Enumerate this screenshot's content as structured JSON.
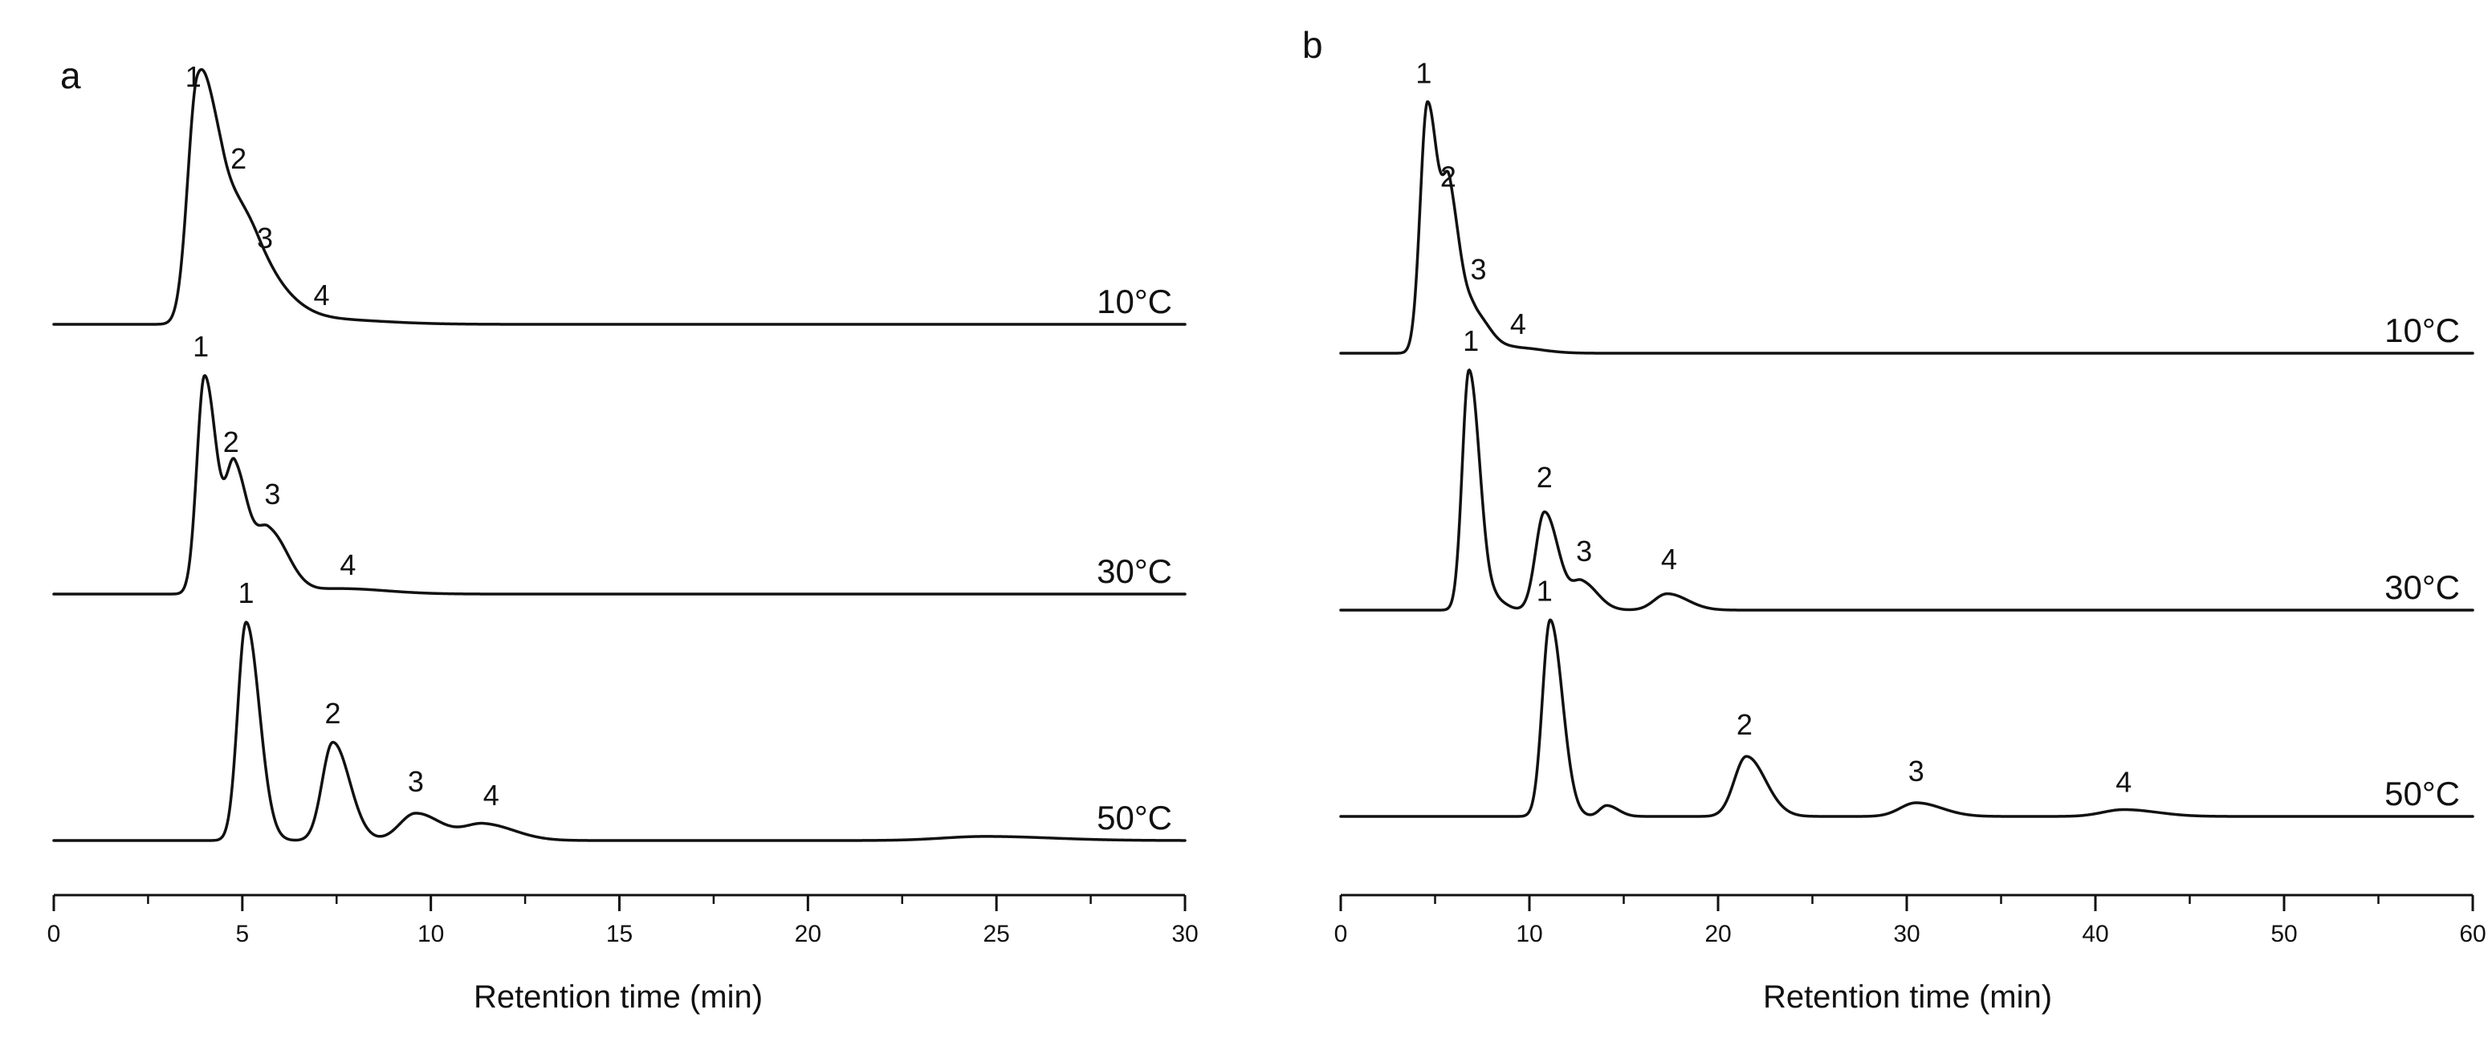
{
  "chart_data": [
    {
      "type": "line",
      "panel": "a",
      "xlabel": "Retention  time (min)",
      "ylabel": "",
      "xlim": [
        0,
        30
      ],
      "xticks": [
        0,
        5,
        10,
        15,
        20,
        25,
        30
      ],
      "xtick_labels": [
        "0",
        "5",
        "10",
        "15",
        "20",
        "25",
        "30"
      ],
      "minor_tick_step": 2.5,
      "y_axis_shown": false,
      "series": [
        {
          "name": "10°C",
          "baseline_level": 3,
          "peaks": [
            {
              "label": "1",
              "x": 3.8,
              "h": 0.8,
              "w": 0.3
            },
            {
              "label": "2",
              "x": 4.5,
              "h": 0.42,
              "w": 0.5
            },
            {
              "label": "3",
              "x": 5.4,
              "h": 0.15,
              "w": 0.6
            },
            {
              "label": "4",
              "x": 6.9,
              "h": 0.02,
              "w": 1.2
            }
          ],
          "labels": [
            {
              "text": "1",
              "x": 3.7,
              "level": 0.87
            },
            {
              "text": "2",
              "x": 4.9,
              "level": 0.57
            },
            {
              "text": "3",
              "x": 5.6,
              "level": 0.28
            },
            {
              "text": "4",
              "x": 7.1,
              "level": 0.07
            }
          ]
        },
        {
          "name": "30°C",
          "baseline_level": 2,
          "peaks": [
            {
              "label": "1",
              "x": 4.0,
              "h": 0.8,
              "w": 0.24
            },
            {
              "label": "2",
              "x": 4.8,
              "h": 0.45,
              "w": 0.26
            },
            {
              "label": "3",
              "x": 5.7,
              "h": 0.23,
              "w": 0.38
            },
            {
              "label": "4",
              "x": 7.6,
              "h": 0.02,
              "w": 0.9
            }
          ],
          "labels": [
            {
              "text": "1",
              "x": 3.9,
              "level": 0.87
            },
            {
              "text": "2",
              "x": 4.7,
              "level": 0.52
            },
            {
              "text": "3",
              "x": 5.8,
              "level": 0.33
            },
            {
              "text": "4",
              "x": 7.8,
              "level": 0.07
            }
          ]
        },
        {
          "name": "50°C",
          "baseline_level": 1,
          "peaks": [
            {
              "label": "1",
              "x": 5.1,
              "h": 0.8,
              "w": 0.26
            },
            {
              "label": "2",
              "x": 7.4,
              "h": 0.36,
              "w": 0.33
            },
            {
              "label": "3",
              "x": 9.6,
              "h": 0.1,
              "w": 0.5
            },
            {
              "label": "4",
              "x": 11.4,
              "h": 0.06,
              "w": 0.6
            },
            {
              "label": "",
              "x": 24.7,
              "h": 0.015,
              "w": 1.3
            }
          ],
          "labels": [
            {
              "text": "1",
              "x": 5.1,
              "level": 0.87
            },
            {
              "text": "2",
              "x": 7.4,
              "level": 0.43
            },
            {
              "text": "3",
              "x": 9.6,
              "level": 0.18
            },
            {
              "text": "4",
              "x": 11.6,
              "level": 0.13
            }
          ]
        }
      ]
    },
    {
      "type": "line",
      "panel": "b",
      "xlabel": "Retention time (min)",
      "ylabel": "",
      "xlim": [
        0,
        60
      ],
      "xticks": [
        0,
        10,
        20,
        30,
        40,
        50,
        60
      ],
      "xtick_labels": [
        "0",
        "10",
        "20",
        "30",
        "40",
        "50",
        "60"
      ],
      "minor_tick_step": 5,
      "y_axis_shown": false,
      "series": [
        {
          "name": "10°C",
          "baseline_level": 3,
          "peaks": [
            {
              "label": "1",
              "x": 4.6,
              "h": 0.92,
              "w": 0.45
            },
            {
              "label": "2",
              "x": 5.8,
              "h": 0.5,
              "w": 0.42
            },
            {
              "label": "3",
              "x": 7.1,
              "h": 0.14,
              "w": 0.6
            },
            {
              "label": "4",
              "x": 9.3,
              "h": 0.02,
              "w": 1.0
            }
          ],
          "labels": [
            {
              "text": "1",
              "x": 4.4,
              "level": 0.99
            },
            {
              "text": "2",
              "x": 5.7,
              "level": 0.61
            },
            {
              "text": "3",
              "x": 7.3,
              "level": 0.27
            },
            {
              "text": "4",
              "x": 9.4,
              "level": 0.07
            }
          ]
        },
        {
          "name": "30°C",
          "baseline_level": 2,
          "peaks": [
            {
              "label": "1",
              "x": 6.8,
              "h": 0.88,
              "w": 0.42
            },
            {
              "label": "",
              "x": 8.3,
              "h": 0.03,
              "w": 0.4
            },
            {
              "label": "2",
              "x": 10.8,
              "h": 0.36,
              "w": 0.55
            },
            {
              "label": "3",
              "x": 12.8,
              "h": 0.1,
              "w": 0.6
            },
            {
              "label": "4",
              "x": 17.3,
              "h": 0.06,
              "w": 0.8
            }
          ],
          "labels": [
            {
              "text": "1",
              "x": 6.9,
              "level": 0.95
            },
            {
              "text": "2",
              "x": 10.8,
              "level": 0.45
            },
            {
              "text": "3",
              "x": 12.9,
              "level": 0.18
            },
            {
              "text": "4",
              "x": 17.4,
              "level": 0.15
            }
          ]
        },
        {
          "name": "50°C",
          "baseline_level": 1,
          "peaks": [
            {
              "label": "1",
              "x": 11.1,
              "h": 0.72,
              "w": 0.48
            },
            {
              "label": "",
              "x": 14.1,
              "h": 0.04,
              "w": 0.45
            },
            {
              "label": "2",
              "x": 21.5,
              "h": 0.22,
              "w": 0.75
            },
            {
              "label": "3",
              "x": 30.5,
              "h": 0.05,
              "w": 1.0
            },
            {
              "label": "4",
              "x": 41.5,
              "h": 0.025,
              "w": 1.3
            }
          ],
          "labels": [
            {
              "text": "1",
              "x": 10.8,
              "level": 0.79
            },
            {
              "text": "2",
              "x": 21.4,
              "level": 0.3
            },
            {
              "text": "3",
              "x": 30.5,
              "level": 0.13
            },
            {
              "text": "4",
              "x": 41.5,
              "level": 0.09
            }
          ]
        }
      ]
    }
  ]
}
